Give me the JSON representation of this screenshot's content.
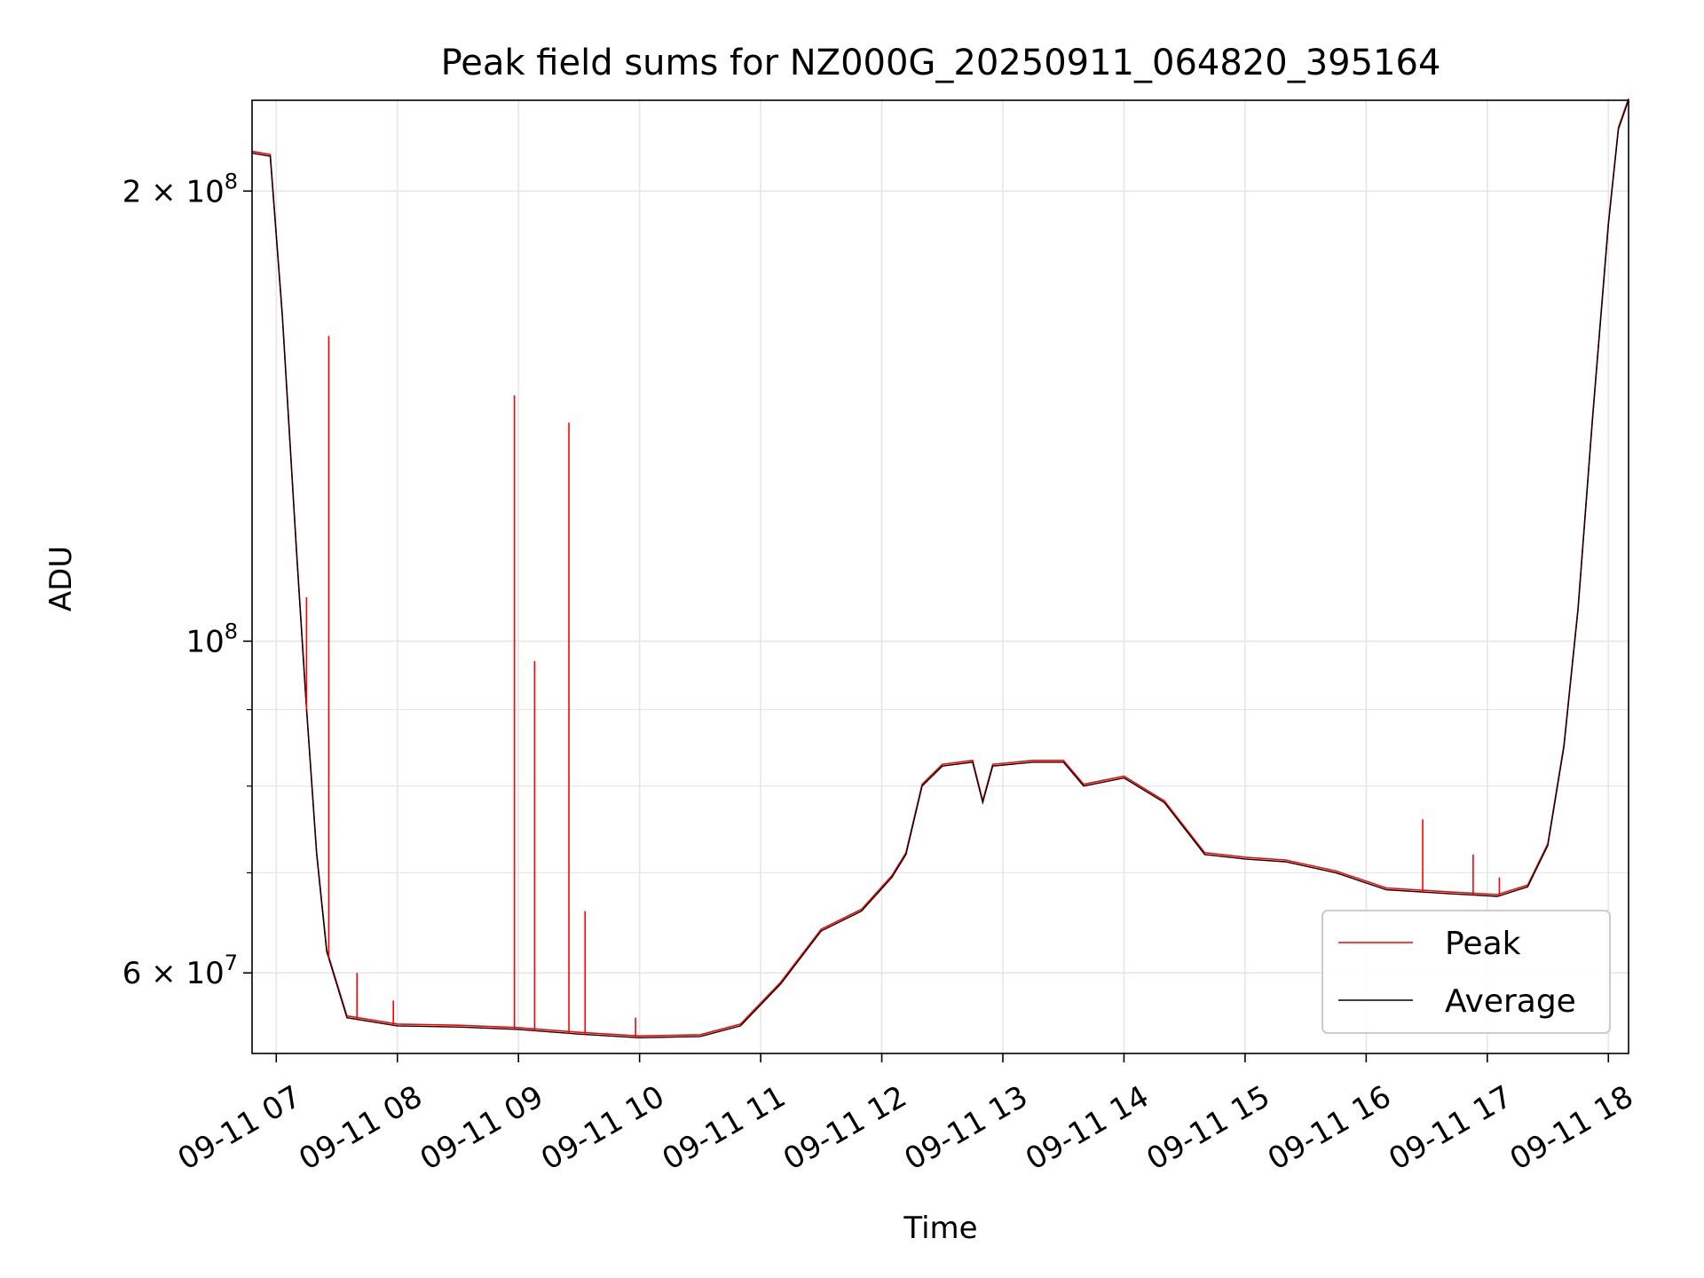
{
  "chart_data": {
    "type": "line",
    "title": "Peak field sums for NZ000G_20250911_064820_395164",
    "xlabel": "Time",
    "ylabel": "ADU",
    "x_axis": {
      "kind": "datetime",
      "range": [
        "2025-09-11 06:48",
        "2025-09-11 18:10"
      ],
      "ticks": [
        {
          "value": "2025-09-11 07:00",
          "label": "09-11 07"
        },
        {
          "value": "2025-09-11 08:00",
          "label": "09-11 08"
        },
        {
          "value": "2025-09-11 09:00",
          "label": "09-11 09"
        },
        {
          "value": "2025-09-11 10:00",
          "label": "09-11 10"
        },
        {
          "value": "2025-09-11 11:00",
          "label": "09-11 11"
        },
        {
          "value": "2025-09-11 12:00",
          "label": "09-11 12"
        },
        {
          "value": "2025-09-11 13:00",
          "label": "09-11 13"
        },
        {
          "value": "2025-09-11 14:00",
          "label": "09-11 14"
        },
        {
          "value": "2025-09-11 15:00",
          "label": "09-11 15"
        },
        {
          "value": "2025-09-11 16:00",
          "label": "09-11 16"
        },
        {
          "value": "2025-09-11 17:00",
          "label": "09-11 17"
        },
        {
          "value": "2025-09-11 18:00",
          "label": "09-11 18"
        }
      ]
    },
    "y_axis": {
      "scale": "log",
      "range": [
        53000000,
        230000000
      ],
      "major_ticks": [
        {
          "value": 60000000,
          "label_base": "6 × 10",
          "label_exp": "7"
        },
        {
          "value": 100000000,
          "label_base": "10",
          "label_exp": "8"
        },
        {
          "value": 200000000,
          "label_base": "2 × 10",
          "label_exp": "8"
        }
      ],
      "minor_ticks": [
        70000000,
        80000000,
        90000000
      ]
    },
    "grid": true,
    "legend": {
      "position": "lower-right",
      "entries": [
        "Peak",
        "Average"
      ]
    },
    "series": [
      {
        "name": "Average",
        "color": "#000000",
        "points": [
          [
            "2025-09-11 06:48",
            212000000
          ],
          [
            "2025-09-11 06:57",
            211000000
          ],
          [
            "2025-09-11 07:03",
            165000000
          ],
          [
            "2025-09-11 07:10",
            115000000
          ],
          [
            "2025-09-11 07:15",
            90000000
          ],
          [
            "2025-09-11 07:20",
            72000000
          ],
          [
            "2025-09-11 07:25",
            62000000
          ],
          [
            "2025-09-11 07:35",
            56000000
          ],
          [
            "2025-09-11 08:00",
            55300000
          ],
          [
            "2025-09-11 08:30",
            55200000
          ],
          [
            "2025-09-11 09:00",
            55000000
          ],
          [
            "2025-09-11 09:30",
            54600000
          ],
          [
            "2025-09-11 10:00",
            54300000
          ],
          [
            "2025-09-11 10:30",
            54400000
          ],
          [
            "2025-09-11 10:50",
            55300000
          ],
          [
            "2025-09-11 11:10",
            59000000
          ],
          [
            "2025-09-11 11:30",
            64000000
          ],
          [
            "2025-09-11 11:50",
            66000000
          ],
          [
            "2025-09-11 12:05",
            69500000
          ],
          [
            "2025-09-11 12:12",
            72000000
          ],
          [
            "2025-09-11 12:20",
            80000000
          ],
          [
            "2025-09-11 12:30",
            82500000
          ],
          [
            "2025-09-11 12:45",
            83000000
          ],
          [
            "2025-09-11 12:50",
            78000000
          ],
          [
            "2025-09-11 12:55",
            82500000
          ],
          [
            "2025-09-11 13:15",
            83000000
          ],
          [
            "2025-09-11 13:30",
            83000000
          ],
          [
            "2025-09-11 13:40",
            80000000
          ],
          [
            "2025-09-11 14:00",
            81000000
          ],
          [
            "2025-09-11 14:20",
            78000000
          ],
          [
            "2025-09-11 14:40",
            72000000
          ],
          [
            "2025-09-11 15:00",
            71500000
          ],
          [
            "2025-09-11 15:20",
            71200000
          ],
          [
            "2025-09-11 15:45",
            70000000
          ],
          [
            "2025-09-11 16:10",
            68200000
          ],
          [
            "2025-09-11 16:40",
            67800000
          ],
          [
            "2025-09-11 17:05",
            67500000
          ],
          [
            "2025-09-11 17:20",
            68500000
          ],
          [
            "2025-09-11 17:30",
            73000000
          ],
          [
            "2025-09-11 17:38",
            85000000
          ],
          [
            "2025-09-11 17:45",
            105000000
          ],
          [
            "2025-09-11 17:52",
            140000000
          ],
          [
            "2025-09-11 18:00",
            190000000
          ],
          [
            "2025-09-11 18:05",
            220000000
          ],
          [
            "2025-09-11 18:10",
            230000000
          ]
        ]
      },
      {
        "name": "Peak",
        "color": "#ff0000",
        "spikes": [
          [
            "2025-09-11 07:15",
            107000000
          ],
          [
            "2025-09-11 07:26",
            160000000
          ],
          [
            "2025-09-11 07:40",
            60000000
          ],
          [
            "2025-09-11 07:58",
            57500000
          ],
          [
            "2025-09-11 08:58",
            146000000
          ],
          [
            "2025-09-11 09:08",
            97000000
          ],
          [
            "2025-09-11 09:25",
            140000000
          ],
          [
            "2025-09-11 09:33",
            66000000
          ],
          [
            "2025-09-11 09:58",
            56000000
          ],
          [
            "2025-09-11 16:28",
            76000000
          ],
          [
            "2025-09-11 16:53",
            72000000
          ],
          [
            "2025-09-11 17:06",
            69500000
          ]
        ]
      }
    ]
  }
}
